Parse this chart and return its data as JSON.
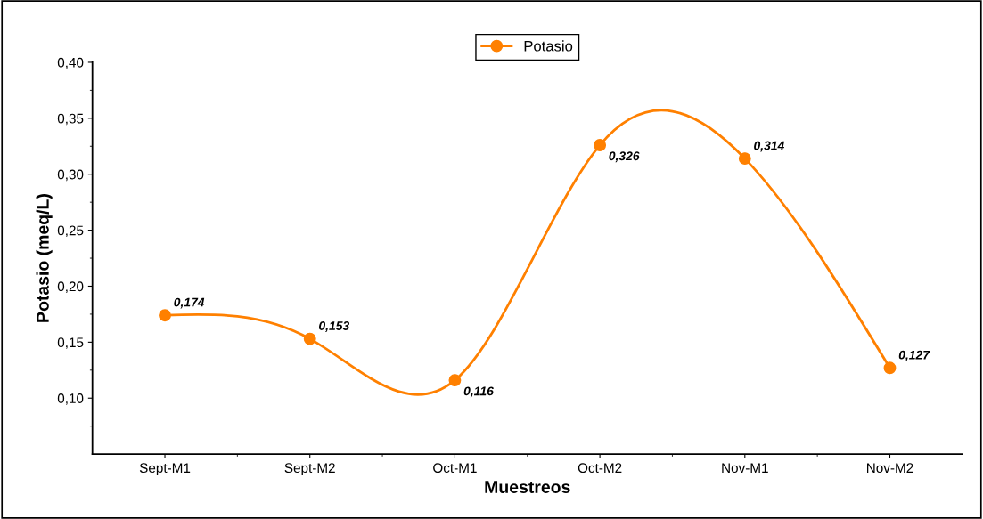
{
  "chart_data": {
    "type": "line",
    "xlabel": "Muestreos",
    "ylabel": "Potasio (meq/L)",
    "categories": [
      "Sept-M1",
      "Sept-M2",
      "Oct-M1",
      "Oct-M2",
      "Nov-M1",
      "Nov-M2"
    ],
    "series": [
      {
        "name": "Potasio",
        "color": "#ff8000",
        "values": [
          0.174,
          0.153,
          0.116,
          0.326,
          0.314,
          0.127
        ],
        "value_labels": [
          "0,174",
          "0,153",
          "0,116",
          "0,326",
          "0,314",
          "0,127"
        ]
      }
    ],
    "ylim": [
      0.05,
      0.4
    ],
    "yticks": [
      {
        "value": 0.1,
        "label": "0,10"
      },
      {
        "value": 0.15,
        "label": "0,15"
      },
      {
        "value": 0.2,
        "label": "0,20"
      },
      {
        "value": 0.25,
        "label": "0,25"
      },
      {
        "value": 0.3,
        "label": "0,30"
      },
      {
        "value": 0.35,
        "label": "0,35"
      },
      {
        "value": 0.4,
        "label": "0,40"
      }
    ],
    "legend": "top",
    "marker": "circle",
    "line_style": "solid",
    "grid": false
  }
}
